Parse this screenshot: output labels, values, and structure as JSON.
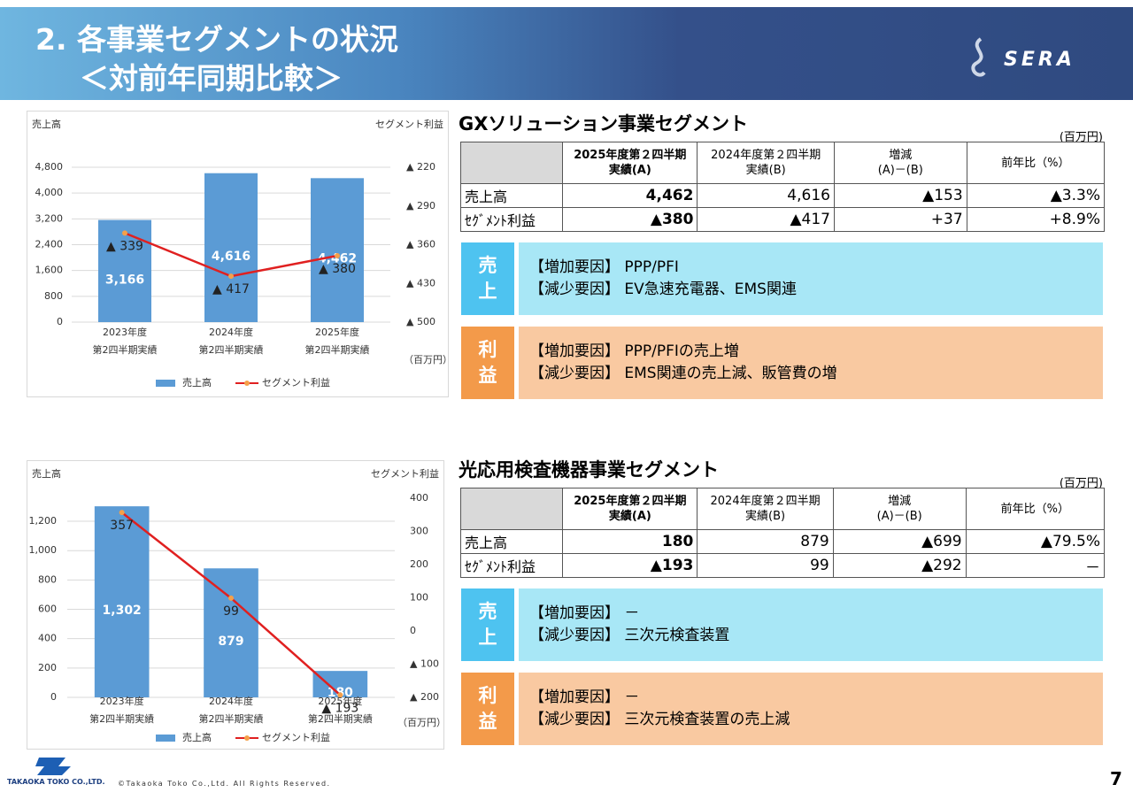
{
  "header": {
    "title": "2. 各事業セグメントの状況",
    "subtitle": "＜対前年同期比較＞",
    "logo": "SERA"
  },
  "chart_data": [
    {
      "type": "bar_line",
      "y_label": "売上高",
      "y2_label": "セグメント利益",
      "unit": "（百万円）",
      "categories": [
        "2023年度\n第2四半期実績",
        "2024年度\n第2四半期実績",
        "2025年度\n第2四半期実績"
      ],
      "series": [
        {
          "name": "売上高",
          "color": "#5b9bd5",
          "values": [
            3166,
            4616,
            4462
          ],
          "value_labels": [
            "3,166",
            "4,616",
            "4,462"
          ]
        },
        {
          "name": "セグメント利益",
          "color": "#e02020",
          "axis": "y2",
          "values": [
            -339,
            -417,
            -380
          ],
          "value_labels": [
            "▲ 339",
            "▲ 417",
            "▲ 380"
          ]
        }
      ],
      "ylim": [
        0,
        4800
      ],
      "yticks": [
        0,
        800,
        {
          "value": 1600,
          "label": "1,600"
        },
        {
          "value": 2400,
          "label": "2,400"
        },
        {
          "value": 3200,
          "label": "3,200"
        },
        {
          "value": 4000,
          "label": "4,000"
        },
        {
          "value": 4800,
          "label": "4,800"
        }
      ],
      "y2lim": [
        -500,
        -220
      ],
      "y2ticks": [
        {
          "value": -220,
          "label": "▲ 220"
        },
        {
          "value": -290,
          "label": "▲ 290"
        },
        {
          "value": -360,
          "label": "▲ 360"
        },
        {
          "value": -430,
          "label": "▲ 430"
        },
        {
          "value": -500,
          "label": "▲ 500"
        }
      ],
      "grid": true,
      "legend": "bottom"
    },
    {
      "type": "bar_line",
      "y_label": "売上高",
      "y2_label": "セグメント利益",
      "unit": "（百万円）",
      "categories": [
        "2023年度\n第2四半期実績",
        "2024年度\n第2四半期実績",
        "2025年度\n第2四半期実績"
      ],
      "series": [
        {
          "name": "売上高",
          "color": "#5b9bd5",
          "values": [
            1302,
            879,
            180
          ],
          "value_labels": [
            "1,302",
            "879",
            "180"
          ]
        },
        {
          "name": "セグメント利益",
          "color": "#e02020",
          "axis": "y2",
          "values": [
            357,
            99,
            -193
          ],
          "value_labels": [
            "357",
            "99",
            "▲ 193"
          ]
        }
      ],
      "ylim": [
        0,
        1357
      ],
      "yticks": [
        0,
        200,
        400,
        600,
        800,
        {
          "value": 1000,
          "label": "1,000"
        },
        {
          "value": 1200,
          "label": "1,200"
        }
      ],
      "y2lim": [
        -200,
        400
      ],
      "y2ticks": [
        400,
        300,
        200,
        100,
        0,
        {
          "value": -100,
          "label": "▲ 100"
        },
        {
          "value": -200,
          "label": "▲ 200"
        }
      ],
      "grid": true,
      "legend": "bottom"
    }
  ],
  "sections": [
    {
      "title": "GXソリューション事業セグメント",
      "unit": "(百万円)",
      "table": {
        "header": [
          "2025年度第２四半期\n実績(A)",
          "2024年度第２四半期\n実績(B)",
          "増減\n(A)－(B)",
          "前年比（%）"
        ],
        "rows": [
          {
            "label": "売上高",
            "cells": [
              "4,462",
              "4,616",
              "▲153",
              "▲3.3%"
            ]
          },
          {
            "label": "ｾｸﾞﾒﾝﾄ利益",
            "cells": [
              "▲380",
              "▲417",
              "+37",
              "+8.9%"
            ]
          }
        ]
      },
      "notes": [
        {
          "tag": "売上",
          "lines": [
            "【増加要因】 PPP/PFI",
            "【減少要因】 EV急速充電器、EMS関連"
          ]
        },
        {
          "tag": "利益",
          "lines": [
            "【増加要因】 PPP/PFIの売上増",
            "【減少要因】 EMS関連の売上減、販管費の増"
          ]
        }
      ]
    },
    {
      "title": "光応用検査機器事業セグメント",
      "unit": "(百万円)",
      "table": {
        "header": [
          "2025年度第２四半期\n実績(A)",
          "2024年度第２四半期\n実績(B)",
          "増減\n(A)－(B)",
          "前年比（%）"
        ],
        "rows": [
          {
            "label": "売上高",
            "cells": [
              "180",
              "879",
              "▲699",
              "▲79.5%"
            ]
          },
          {
            "label": "ｾｸﾞﾒﾝﾄ利益",
            "cells": [
              "▲193",
              "99",
              "▲292",
              "－"
            ]
          }
        ]
      },
      "notes": [
        {
          "tag": "売上",
          "lines": [
            "【増加要因】 －",
            "【減少要因】 三次元検査装置"
          ]
        },
        {
          "tag": "利益",
          "lines": [
            "【増加要因】 －",
            "【減少要因】 三次元検査装置の売上減"
          ]
        }
      ]
    }
  ],
  "footer": {
    "company": "TAKAOKA TOKO CO.,LTD.",
    "copyright": "©Takaoka Toko Co.,Ltd. All Rights Reserved.",
    "page": "7"
  }
}
